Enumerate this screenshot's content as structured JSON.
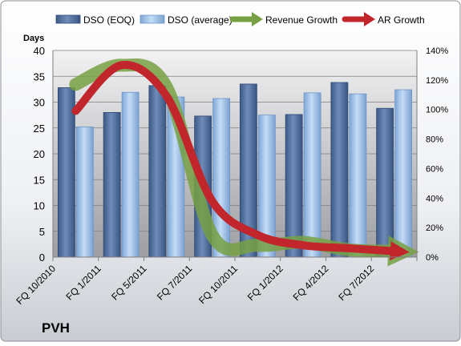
{
  "chart_data": {
    "type": "bar",
    "title": "PVH",
    "y_left_label": "Days",
    "y_left_range": [
      0,
      40
    ],
    "y_left_ticks": [
      "0",
      "5",
      "10",
      "15",
      "20",
      "25",
      "30",
      "35",
      "40"
    ],
    "y_right_range": [
      0,
      140
    ],
    "y_right_ticks": [
      "0%",
      "20%",
      "40%",
      "60%",
      "80%",
      "100%",
      "120%",
      "140%"
    ],
    "categories": [
      "FQ 10/2010",
      "FQ 1/2011",
      "FQ 5/2011",
      "FQ 7/2011",
      "FQ 10/2011",
      "FQ 1/2012",
      "FQ 4/2012",
      "FQ 7/2012"
    ],
    "legend": {
      "placement": "top"
    },
    "series": [
      {
        "name": "DSO (EOQ)",
        "type": "bar",
        "axis": "left",
        "color": "#4f6d99",
        "values": [
          32.8,
          28.0,
          33.2,
          27.3,
          33.5,
          27.6,
          33.8,
          28.8
        ]
      },
      {
        "name": "DSO (average)",
        "type": "bar",
        "axis": "left",
        "color": "#a9c8ec",
        "values": [
          25.2,
          31.9,
          31.0,
          30.7,
          27.5,
          31.8,
          31.6,
          32.4
        ]
      },
      {
        "name": "Revenue Growth",
        "type": "line",
        "axis": "right",
        "color": "#77a043",
        "values": [
          117,
          130,
          115,
          15,
          8,
          10,
          5,
          4
        ]
      },
      {
        "name": "AR Growth",
        "type": "line",
        "axis": "right",
        "color": "#c0262b",
        "values": [
          99,
          130,
          109,
          38,
          15,
          8,
          6,
          4
        ]
      }
    ]
  }
}
